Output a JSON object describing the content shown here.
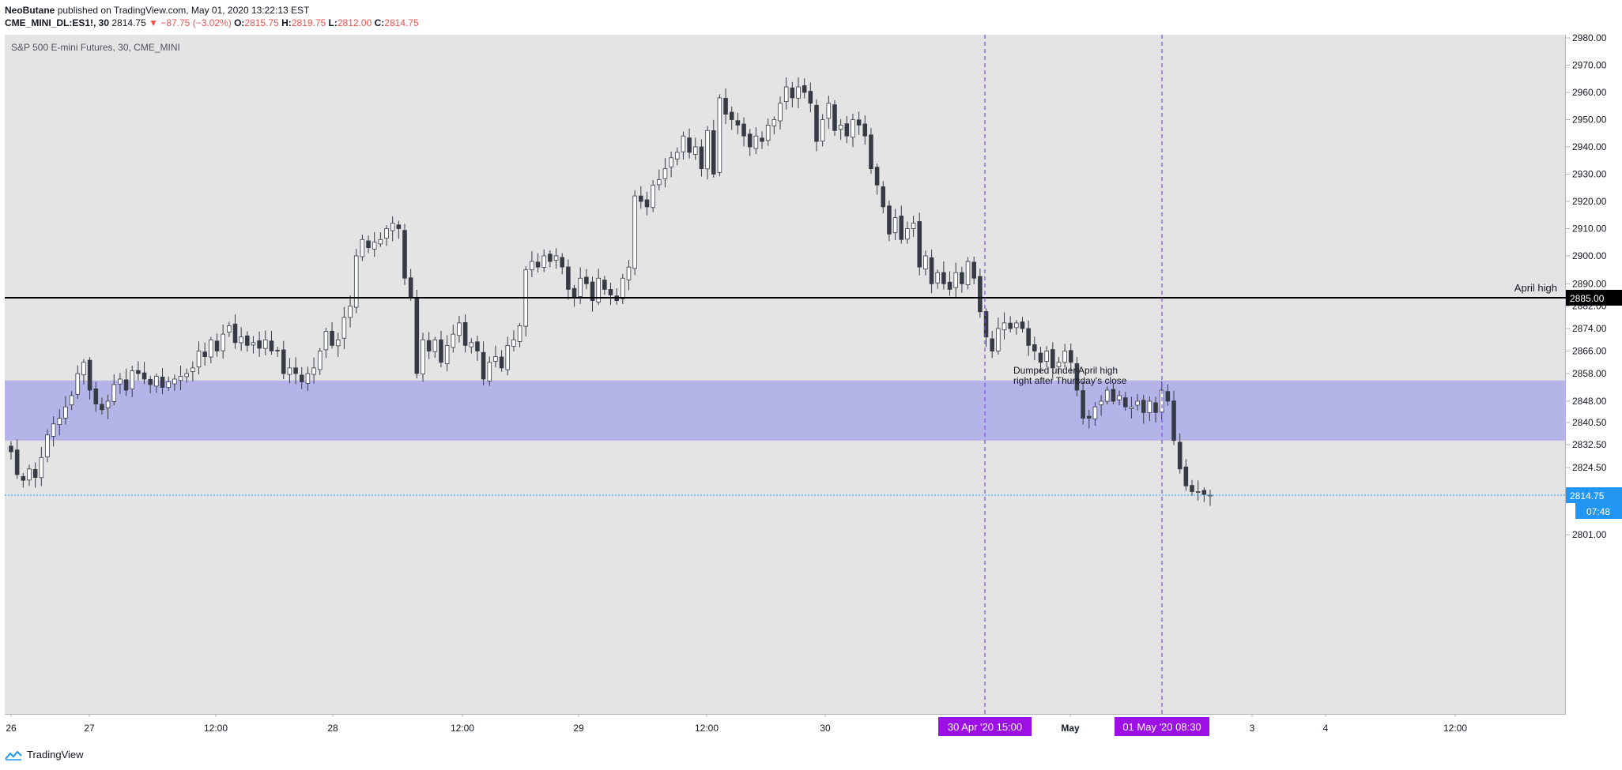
{
  "header": {
    "author": "NeoButane",
    "published_text": "published on TradingView.com, May 01, 2020 13:22:13 EST",
    "symbol": "CME_MINI_DL:ES1!, 30",
    "change": "▼ −87.75 (−3.02%)",
    "o_label": "O:",
    "o_value": "2815.75",
    "h_label": "H:",
    "h_value": "2819.75",
    "l_label": "L:",
    "l_value": "2812.00",
    "c_label": "C:",
    "c_value": "2814.75",
    "last_price": "2814.75"
  },
  "footer": {
    "brand": "TradingView"
  },
  "colors": {
    "plot_bg": "#e4e4e4",
    "zone": "#b4b4e8",
    "candle_up": "#ffffff",
    "candle_down": "#363a45",
    "wick": "#363a45",
    "vline": "#7b4dff",
    "time_badge": "#9c10e6",
    "price_badge": "#2196f3",
    "red": "#ef5350"
  },
  "chart_data": {
    "type": "candlestick",
    "title": "S&P 500 E-mini Futures, 30, CME_MINI",
    "y_axis": {
      "ticks": [
        "2980.00",
        "2970.00",
        "2960.00",
        "2950.00",
        "2940.00",
        "2930.00",
        "2920.00",
        "2910.00",
        "2900.00",
        "2890.00",
        "2882.00",
        "2874.00",
        "2866.00",
        "2858.00",
        "2848.00",
        "2840.50",
        "2832.50",
        "2824.50",
        "2801.00"
      ],
      "ylim": [
        2797,
        2985
      ]
    },
    "x_axis": {
      "ticks": [
        "26",
        "27",
        "12:00",
        "28",
        "12:00",
        "29",
        "12:00",
        "30",
        "May",
        "3",
        "4",
        "12:00"
      ],
      "bold_ticks": [
        "May"
      ]
    },
    "closes": [
      2830,
      2822,
      2820,
      2824,
      2821,
      2828,
      2836,
      2840,
      2842,
      2846,
      2850,
      2858,
      2862,
      2852,
      2847,
      2845,
      2848,
      2854,
      2856,
      2852,
      2859,
      2858,
      2856,
      2854,
      2857,
      2853,
      2855,
      2856,
      2857,
      2858,
      2860,
      2866,
      2864,
      2870,
      2866,
      2872,
      2875,
      2869,
      2871,
      2868,
      2869,
      2867,
      2870,
      2866,
      2866,
      2858,
      2860,
      2858,
      2855,
      2858,
      2860,
      2866,
      2873,
      2868,
      2870,
      2878,
      2882,
      2900,
      2906,
      2903,
      2905,
      2906,
      2910,
      2912,
      2910,
      2892,
      2885,
      2858,
      2870,
      2866,
      2870,
      2862,
      2868,
      2872,
      2876,
      2868,
      2869,
      2866,
      2856,
      2862,
      2864,
      2860,
      2868,
      2870,
      2875,
      2895,
      2898,
      2896,
      2900,
      2898,
      2900,
      2896,
      2888,
      2885,
      2892,
      2890,
      2884,
      2892,
      2888,
      2886,
      2884,
      2892,
      2896,
      2922,
      2920,
      2918,
      2926,
      2928,
      2932,
      2936,
      2938,
      2944,
      2938,
      2940,
      2932,
      2946,
      2930,
      2958,
      2952,
      2950,
      2948,
      2944,
      2940,
      2944,
      2942,
      2948,
      2950,
      2956,
      2962,
      2958,
      2962,
      2960,
      2956,
      2942,
      2950,
      2956,
      2946,
      2948,
      2944,
      2950,
      2948,
      2944,
      2932,
      2926,
      2918,
      2908,
      2914,
      2906,
      2910,
      2912,
      2896,
      2900,
      2890,
      2894,
      2890,
      2888,
      2894,
      2890,
      2898,
      2892,
      2880,
      2871,
      2866,
      2874,
      2876,
      2874,
      2876,
      2874,
      2868,
      2866,
      2862,
      2866,
      2860,
      2862,
      2866,
      2862,
      2852,
      2842,
      2842,
      2846,
      2848,
      2852,
      2848,
      2850,
      2846,
      2846,
      2848,
      2844,
      2848,
      2844,
      2852,
      2848,
      2834,
      2824,
      2818,
      2816,
      2816,
      2815,
      2814.75
    ],
    "levels": [
      {
        "label": "April high",
        "value": 2885.0,
        "value_label": "2885.00"
      }
    ],
    "zones": [
      {
        "from": 2834,
        "to": 2855.5
      }
    ],
    "annotations": [
      {
        "text_line1": "Dumped under April high",
        "text_line2": "right after Thursday's close"
      }
    ],
    "markers": [
      {
        "label": "30 Apr '20   15:00"
      },
      {
        "label": "01 May '20   08:30"
      }
    ],
    "last": {
      "value": 2814.75,
      "price_label": "2814.75",
      "countdown": "07:48"
    }
  }
}
